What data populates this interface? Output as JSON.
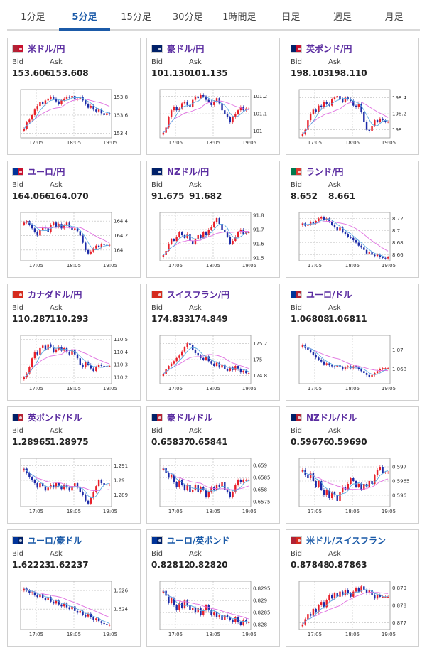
{
  "tabs": [
    "1分足",
    "5分足",
    "15分足",
    "30分足",
    "1時間足",
    "日足",
    "週足",
    "月足"
  ],
  "active_tab": 1,
  "labels": {
    "bid": "Bid",
    "ask": "Ask"
  },
  "colors": {
    "up": "#e8202a",
    "down": "#1c2ba8",
    "ma_long": "#e070e0",
    "ma_short": "#5aa8e0",
    "pair_purple": "#5a2ca0",
    "pair_blue": "#1b5aa8"
  },
  "xticks": [
    "17:05",
    "18:05",
    "19:05"
  ],
  "pairs": [
    {
      "name": "米ドル/円",
      "bid": "153.606",
      "ask": "153.608",
      "flags": [
        "#b22234",
        "#c8102e"
      ],
      "name_color": "purple",
      "chart_data": {
        "type": "candlestick",
        "yticks": [
          "153.8",
          "153.6",
          "153.4"
        ],
        "ylim": [
          153.35,
          153.88
        ],
        "close": [
          153.45,
          153.52,
          153.55,
          153.6,
          153.66,
          153.7,
          153.74,
          153.72,
          153.76,
          153.78,
          153.8,
          153.78,
          153.75,
          153.72,
          153.76,
          153.78,
          153.8,
          153.79,
          153.81,
          153.77,
          153.78,
          153.8,
          153.76,
          153.72,
          153.68,
          153.7,
          153.66,
          153.64,
          153.66,
          153.62,
          153.6,
          153.62,
          153.61
        ]
      }
    },
    {
      "name": "豪ドル/円",
      "bid": "101.130",
      "ask": "101.135",
      "flags": [
        "#012169",
        "#012169"
      ],
      "name_color": "purple",
      "chart_data": {
        "type": "candlestick",
        "yticks": [
          "101.2",
          "101.1",
          "101"
        ],
        "ylim": [
          100.96,
          101.24
        ],
        "close": [
          100.99,
          101.02,
          101.08,
          101.12,
          101.14,
          101.12,
          101.13,
          101.16,
          101.17,
          101.15,
          101.14,
          101.18,
          101.2,
          101.19,
          101.21,
          101.2,
          101.18,
          101.17,
          101.15,
          101.17,
          101.19,
          101.16,
          101.12,
          101.1,
          101.08,
          101.05,
          101.08,
          101.1,
          101.12,
          101.14,
          101.12,
          101.13,
          101.13
        ]
      }
    },
    {
      "name": "英ポンド/円",
      "bid": "198.103",
      "ask": "198.110",
      "flags": [
        "#012169",
        "#c8102e"
      ],
      "name_color": "purple",
      "chart_data": {
        "type": "candlestick",
        "yticks": [
          "198.4",
          "198.2",
          "198"
        ],
        "ylim": [
          197.9,
          198.5
        ],
        "close": [
          197.95,
          198.0,
          198.12,
          198.2,
          198.25,
          198.22,
          198.3,
          198.28,
          198.35,
          198.32,
          198.3,
          198.38,
          198.4,
          198.42,
          198.38,
          198.35,
          198.4,
          198.38,
          198.36,
          198.3,
          198.28,
          198.32,
          198.22,
          198.1,
          198.0,
          197.98,
          198.05,
          198.12,
          198.1,
          198.14,
          198.12,
          198.1,
          198.1
        ]
      }
    },
    {
      "name": "ユーロ/円",
      "bid": "164.066",
      "ask": "164.070",
      "flags": [
        "#003399",
        "#c8102e"
      ],
      "name_color": "purple",
      "chart_data": {
        "type": "candlestick",
        "yticks": [
          "164.4",
          "164.2",
          "164"
        ],
        "ylim": [
          163.85,
          164.52
        ],
        "close": [
          164.38,
          164.4,
          164.35,
          164.3,
          164.25,
          164.2,
          164.28,
          164.32,
          164.3,
          164.25,
          164.35,
          164.38,
          164.32,
          164.36,
          164.3,
          164.34,
          164.38,
          164.32,
          164.28,
          164.3,
          164.26,
          164.2,
          164.1,
          164.0,
          163.95,
          163.98,
          164.02,
          164.06,
          164.04,
          164.08,
          164.07,
          164.06,
          164.07
        ]
      }
    },
    {
      "name": "NZドル/円",
      "bid": "91.675",
      "ask": "91.682",
      "flags": [
        "#012169",
        "#012169"
      ],
      "name_color": "purple",
      "chart_data": {
        "type": "candlestick",
        "yticks": [
          "91.8",
          "91.7",
          "91.6",
          "91.5"
        ],
        "ylim": [
          91.48,
          91.82
        ],
        "close": [
          91.52,
          91.55,
          91.6,
          91.63,
          91.62,
          91.65,
          91.68,
          91.66,
          91.64,
          91.67,
          91.62,
          91.6,
          91.63,
          91.66,
          91.64,
          91.68,
          91.66,
          91.7,
          91.72,
          91.75,
          91.78,
          91.74,
          91.7,
          91.68,
          91.65,
          91.6,
          91.62,
          91.65,
          91.68,
          91.7,
          91.67,
          91.68,
          91.68
        ]
      }
    },
    {
      "name": "ランド/円",
      "bid": "8.652",
      "ask": "8.661",
      "flags": [
        "#007a4d",
        "#de3831"
      ],
      "name_color": "purple",
      "chart_data": {
        "type": "candlestick",
        "yticks": [
          "8.72",
          "8.7",
          "8.68",
          "8.66"
        ],
        "ylim": [
          8.65,
          8.73
        ],
        "close": [
          8.712,
          8.708,
          8.71,
          8.714,
          8.712,
          8.716,
          8.72,
          8.722,
          8.718,
          8.72,
          8.715,
          8.71,
          8.706,
          8.7,
          8.705,
          8.698,
          8.694,
          8.69,
          8.688,
          8.684,
          8.68,
          8.675,
          8.672,
          8.668,
          8.662,
          8.664,
          8.66,
          8.658,
          8.66,
          8.656,
          8.655,
          8.654,
          8.656
        ]
      }
    },
    {
      "name": "カナダドル/円",
      "bid": "110.287",
      "ask": "110.293",
      "flags": [
        "#d52b1e",
        "#d52b1e"
      ],
      "name_color": "purple",
      "chart_data": {
        "type": "candlestick",
        "yticks": [
          "110.5",
          "110.4",
          "110.3",
          "110.2"
        ],
        "ylim": [
          110.15,
          110.53
        ],
        "close": [
          110.2,
          110.23,
          110.28,
          110.35,
          110.4,
          110.38,
          110.43,
          110.45,
          110.42,
          110.46,
          110.44,
          110.4,
          110.42,
          110.44,
          110.41,
          110.43,
          110.4,
          110.38,
          110.42,
          110.38,
          110.35,
          110.3,
          110.28,
          110.32,
          110.3,
          110.27,
          110.25,
          110.28,
          110.3,
          110.29,
          110.28,
          110.29,
          110.29
        ]
      }
    },
    {
      "name": "スイスフラン/円",
      "bid": "174.833",
      "ask": "174.849",
      "flags": [
        "#d52b1e",
        "#d52b1e"
      ],
      "name_color": "purple",
      "chart_data": {
        "type": "candlestick",
        "yticks": [
          "175.2",
          "175",
          "174.8"
        ],
        "ylim": [
          174.7,
          175.3
        ],
        "close": [
          174.82,
          174.88,
          174.92,
          174.95,
          174.98,
          175.02,
          175.05,
          175.1,
          175.15,
          175.2,
          175.18,
          175.12,
          175.08,
          175.05,
          175.02,
          175.0,
          175.04,
          174.98,
          174.95,
          174.92,
          174.96,
          174.9,
          174.94,
          174.88,
          174.86,
          174.9,
          174.87,
          174.92,
          174.88,
          174.84,
          174.86,
          174.83,
          174.83
        ]
      }
    },
    {
      "name": "ユーロ/ドル",
      "bid": "1.06808",
      "ask": "1.06811",
      "flags": [
        "#003399",
        "#b22234"
      ],
      "name_color": "purple",
      "chart_data": {
        "type": "candlestick",
        "yticks": [
          "1.07",
          "1.068"
        ],
        "ylim": [
          1.0665,
          1.0715
        ],
        "close": [
          1.0705,
          1.0702,
          1.07,
          1.0698,
          1.0695,
          1.0692,
          1.069,
          1.0688,
          1.0685,
          1.0686,
          1.0684,
          1.0683,
          1.0682,
          1.0684,
          1.0682,
          1.068,
          1.0682,
          1.0683,
          1.0681,
          1.0683,
          1.0682,
          1.068,
          1.0678,
          1.0676,
          1.0674,
          1.0672,
          1.0674,
          1.0676,
          1.0678,
          1.068,
          1.0681,
          1.0681,
          1.0681
        ]
      }
    },
    {
      "name": "英ポンド/ドル",
      "bid": "1.28965",
      "ask": "1.28975",
      "flags": [
        "#012169",
        "#b22234"
      ],
      "name_color": "purple",
      "chart_data": {
        "type": "candlestick",
        "yticks": [
          "1.291",
          "1.29",
          "1.289"
        ],
        "ylim": [
          1.2882,
          1.2915
        ],
        "close": [
          1.2908,
          1.2905,
          1.2902,
          1.29,
          1.2898,
          1.2895,
          1.2898,
          1.2896,
          1.2893,
          1.2895,
          1.2897,
          1.2895,
          1.2898,
          1.2896,
          1.2894,
          1.2897,
          1.2895,
          1.2893,
          1.2896,
          1.2898,
          1.2895,
          1.2892,
          1.289,
          1.2886,
          1.2884,
          1.2888,
          1.2892,
          1.2896,
          1.29,
          1.2898,
          1.2897,
          1.2897,
          1.2897
        ]
      }
    },
    {
      "name": "豪ドル/ドル",
      "bid": "0.65837",
      "ask": "0.65841",
      "flags": [
        "#012169",
        "#b22234"
      ],
      "name_color": "purple",
      "chart_data": {
        "type": "candlestick",
        "yticks": [
          "0.659",
          "0.6585",
          "0.658",
          "0.6575"
        ],
        "ylim": [
          0.6573,
          0.6593
        ],
        "close": [
          0.6589,
          0.6587,
          0.6585,
          0.6586,
          0.6583,
          0.6581,
          0.6584,
          0.6582,
          0.658,
          0.6582,
          0.6579,
          0.658,
          0.6582,
          0.6579,
          0.6581,
          0.658,
          0.6577,
          0.6579,
          0.6581,
          0.658,
          0.6582,
          0.6581,
          0.6583,
          0.658,
          0.6579,
          0.6577,
          0.6579,
          0.6582,
          0.6584,
          0.6583,
          0.6584,
          0.6584,
          0.6584
        ]
      }
    },
    {
      "name": "NZドル/ドル",
      "bid": "0.59676",
      "ask": "0.59690",
      "flags": [
        "#012169",
        "#b22234"
      ],
      "name_color": "purple",
      "chart_data": {
        "type": "candlestick",
        "yticks": [
          "0.597",
          "0.5965",
          "0.596"
        ],
        "ylim": [
          0.5956,
          0.5973
        ],
        "close": [
          0.5969,
          0.5967,
          0.5966,
          0.5968,
          0.5965,
          0.5963,
          0.5965,
          0.5962,
          0.596,
          0.5962,
          0.5959,
          0.5961,
          0.596,
          0.5958,
          0.5961,
          0.5963,
          0.5962,
          0.5964,
          0.5966,
          0.5965,
          0.5963,
          0.5964,
          0.5962,
          0.5964,
          0.5963,
          0.5965,
          0.5964,
          0.5967,
          0.5969,
          0.597,
          0.5968,
          0.5968,
          0.5968
        ]
      }
    },
    {
      "name": "ユーロ/豪ドル",
      "bid": "1.62223",
      "ask": "1.62237",
      "flags": [
        "#003399",
        "#012169"
      ],
      "name_color": "blue",
      "chart_data": {
        "type": "candlestick",
        "yticks": [
          "1.626",
          "1.624"
        ],
        "ylim": [
          1.6218,
          1.627
        ],
        "close": [
          1.6262,
          1.626,
          1.6257,
          1.6258,
          1.6255,
          1.6253,
          1.6256,
          1.6252,
          1.625,
          1.6253,
          1.6248,
          1.6246,
          1.6249,
          1.6245,
          1.6243,
          1.6246,
          1.6242,
          1.624,
          1.6243,
          1.6238,
          1.6236,
          1.6238,
          1.6234,
          1.6232,
          1.6235,
          1.6231,
          1.6228,
          1.623,
          1.6227,
          1.6225,
          1.6224,
          1.6223,
          1.6223
        ]
      }
    },
    {
      "name": "ユーロ/英ポンド",
      "bid": "0.82812",
      "ask": "0.82820",
      "flags": [
        "#003399",
        "#012169"
      ],
      "name_color": "blue",
      "chart_data": {
        "type": "candlestick",
        "yticks": [
          "0.8295",
          "0.829",
          "0.8285",
          "0.828"
        ],
        "ylim": [
          0.8278,
          0.8298
        ],
        "close": [
          0.8294,
          0.8292,
          0.8289,
          0.8291,
          0.8288,
          0.8286,
          0.8289,
          0.8287,
          0.829,
          0.8288,
          0.8286,
          0.8287,
          0.8285,
          0.8287,
          0.8284,
          0.8286,
          0.8288,
          0.8286,
          0.8284,
          0.8285,
          0.8283,
          0.8284,
          0.8282,
          0.8284,
          0.8283,
          0.8282,
          0.8281,
          0.8283,
          0.8281,
          0.828,
          0.8282,
          0.8281,
          0.8281
        ]
      }
    },
    {
      "name": "米ドル/スイスフラン",
      "bid": "0.87848",
      "ask": "0.87863",
      "flags": [
        "#b22234",
        "#d52b1e"
      ],
      "name_color": "blue",
      "chart_data": {
        "type": "candlestick",
        "yticks": [
          "0.879",
          "0.878",
          "0.877"
        ],
        "ylim": [
          0.8766,
          0.8794
        ],
        "close": [
          0.8769,
          0.8772,
          0.8775,
          0.8774,
          0.8778,
          0.8776,
          0.878,
          0.8782,
          0.8779,
          0.8783,
          0.8786,
          0.8784,
          0.8787,
          0.8785,
          0.8788,
          0.8786,
          0.8789,
          0.8787,
          0.8785,
          0.8788,
          0.879,
          0.8788,
          0.8791,
          0.8789,
          0.8787,
          0.8789,
          0.8786,
          0.8784,
          0.8786,
          0.8785,
          0.8785,
          0.8785,
          0.8785
        ]
      }
    }
  ]
}
